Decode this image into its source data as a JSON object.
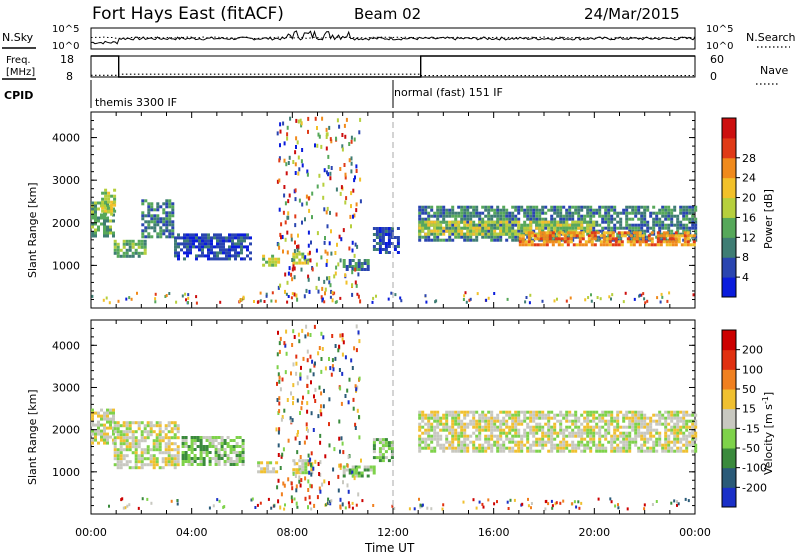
{
  "header": {
    "title": "Fort Hays East (fitACF)",
    "beam": "Beam 02",
    "date": "24/Mar/2015"
  },
  "top_panels": {
    "nsky_label": "N.Sky",
    "nsky_ticks": [
      "10^5",
      "10^0"
    ],
    "nsearch_ticks": [
      "10^5",
      "10^0"
    ],
    "nsearch_label": "N.Search",
    "freq_label": "Freq.",
    "freq_unit": "[MHz]",
    "freq_ticks": [
      "18",
      "8"
    ],
    "nave_ticks": [
      "60",
      "0"
    ],
    "nave_label": "Nave",
    "cpid_label": "CPID",
    "cpid_modes": [
      "themis 3300 IF",
      "normal (fast) 151 IF"
    ],
    "mode_change_time": 12.0,
    "freq_series": {
      "name": "Freq.",
      "t": [
        0,
        1.1,
        1.1,
        13.1,
        13.1,
        24
      ],
      "v": [
        18,
        18,
        8,
        8,
        18,
        18
      ]
    },
    "nave_series": {
      "name": "Nave",
      "t": [
        0,
        1.1,
        1.1,
        13.1,
        13.1,
        24
      ],
      "v": [
        5,
        5,
        8,
        8,
        4,
        4
      ]
    }
  },
  "x_axis": {
    "label": "Time UT",
    "ticks": [
      "00:00",
      "04:00",
      "08:00",
      "12:00",
      "16:00",
      "20:00",
      "00:00"
    ],
    "range_hours": [
      0,
      24
    ]
  },
  "power_colorbar": {
    "label": "Power [dB]",
    "ticks": [
      "4",
      "8",
      "12",
      "16",
      "20",
      "24",
      "28"
    ],
    "colors": [
      "#0a1cdc",
      "#2a45b0",
      "#3f7d74",
      "#56a85a",
      "#b6cf3d",
      "#f2c12a",
      "#f08a1c",
      "#e03a17",
      "#cc0f0f"
    ]
  },
  "velocity_colorbar": {
    "label": "Velocity [m s",
    "label_sup": "-1",
    "label_end": "]",
    "ticks": [
      "200",
      "100",
      "50",
      "15",
      "-15",
      "-50",
      "-100",
      "-200"
    ],
    "colors": [
      "#1a30c8",
      "#2a5a78",
      "#3a8a3c",
      "#7ed24a",
      "#c8c8c0",
      "#f0c030",
      "#f08020",
      "#e03010",
      "#cc0000"
    ]
  },
  "chart_data": [
    {
      "type": "heatmap",
      "panel": "power",
      "ylabel": "Slant Range [km]",
      "yticks": [
        1000,
        2000,
        3000,
        4000
      ],
      "ylim": [
        0,
        4600
      ],
      "xlim_hours": [
        0,
        24
      ],
      "regions": [
        {
          "t": [
            0.0,
            0.9
          ],
          "range": [
            1700,
            2500
          ],
          "level": 3
        },
        {
          "t": [
            0.4,
            0.9
          ],
          "range": [
            2200,
            2800
          ],
          "level": 4
        },
        {
          "t": [
            0.9,
            2.2
          ],
          "range": [
            1200,
            1600
          ],
          "level": 3
        },
        {
          "t": [
            2.0,
            3.3
          ],
          "range": [
            1650,
            2550
          ],
          "level": 2
        },
        {
          "t": [
            3.3,
            6.3
          ],
          "range": [
            1150,
            1750
          ],
          "level": 1
        },
        {
          "t": [
            6.8,
            7.4
          ],
          "range": [
            1000,
            1250
          ],
          "level": 4
        },
        {
          "t": [
            8.0,
            8.7
          ],
          "range": [
            1050,
            1300
          ],
          "level": 4
        },
        {
          "t": [
            10.0,
            11.0
          ],
          "range": [
            900,
            1150
          ],
          "level": 2
        },
        {
          "t": [
            11.2,
            12.2
          ],
          "range": [
            1300,
            1900
          ],
          "level": 1
        },
        {
          "t": [
            13.0,
            24.0
          ],
          "range": [
            1600,
            2400
          ],
          "level": 2
        },
        {
          "t": [
            13.0,
            20.0
          ],
          "range": [
            1700,
            2050
          ],
          "level": 4
        },
        {
          "t": [
            17.0,
            24.0
          ],
          "range": [
            1500,
            1800
          ],
          "level": 6
        }
      ]
    },
    {
      "type": "heatmap",
      "panel": "velocity",
      "ylabel": "Slant Range [km]",
      "yticks": [
        1000,
        2000,
        3000,
        4000
      ],
      "ylim": [
        0,
        4600
      ],
      "xlim_hours": [
        0,
        24
      ],
      "regions": [
        {
          "t": [
            0.0,
            0.9
          ],
          "range": [
            1700,
            2500
          ],
          "level": 4
        },
        {
          "t": [
            0.9,
            3.5
          ],
          "range": [
            1100,
            2200
          ],
          "level": 4
        },
        {
          "t": [
            3.6,
            6.0
          ],
          "range": [
            1200,
            1850
          ],
          "level": 3
        },
        {
          "t": [
            6.6,
            7.4
          ],
          "range": [
            1000,
            1250
          ],
          "level": 4
        },
        {
          "t": [
            8.0,
            8.8
          ],
          "range": [
            1000,
            1300
          ],
          "level": 4
        },
        {
          "t": [
            10.0,
            11.3
          ],
          "range": [
            900,
            1150
          ],
          "level": 3
        },
        {
          "t": [
            11.2,
            12.0
          ],
          "range": [
            1300,
            1800
          ],
          "level": 3
        },
        {
          "t": [
            13.0,
            24.0
          ],
          "range": [
            1500,
            2450
          ],
          "level": 4
        }
      ]
    }
  ]
}
